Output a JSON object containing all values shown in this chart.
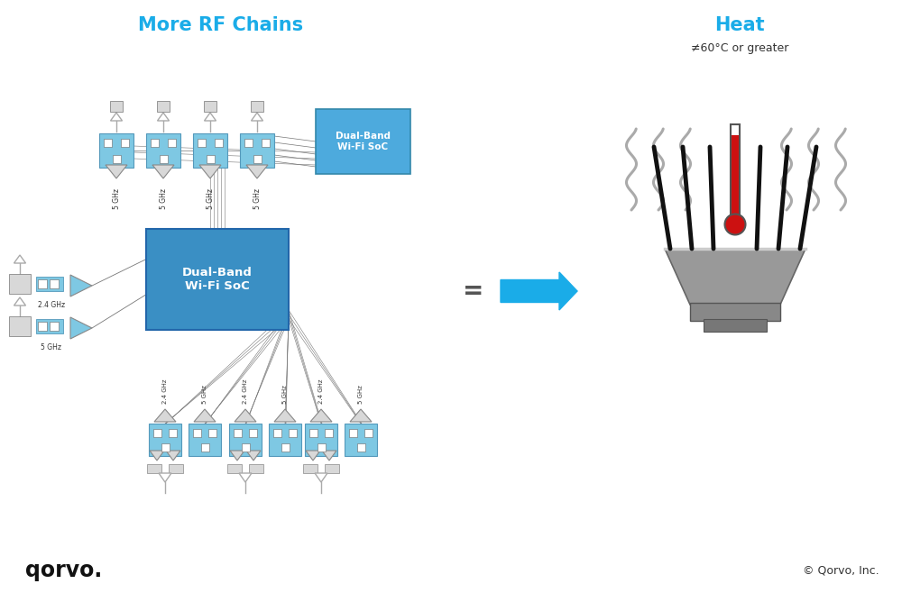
{
  "title_left": "More RF Chains",
  "title_right": "Heat",
  "subtitle_right": "≠60°C or greater",
  "title_color": "#1AACE8",
  "bg_color": "#FFFFFF",
  "box_color_blue": "#7EC8E3",
  "box_color_soc_top": "#4DAADD",
  "box_color_soc_main": "#3A8FC4",
  "box_color_gray": "#C8C8C8",
  "box_color_light_gray": "#D8D8D8",
  "line_color": "#777777",
  "arrow_color": "#1AACE8",
  "font_small": 5.5,
  "font_medium": 9,
  "font_large": 15,
  "copyright_text": "© Qorvo, Inc.",
  "qorvo_text": "qorvo.",
  "equal_sign": "=",
  "dual_band_text": "Dual-Band\nWi-Fi SoC",
  "ghz_24": "2.4 GHz",
  "ghz_5": "5 GHz"
}
